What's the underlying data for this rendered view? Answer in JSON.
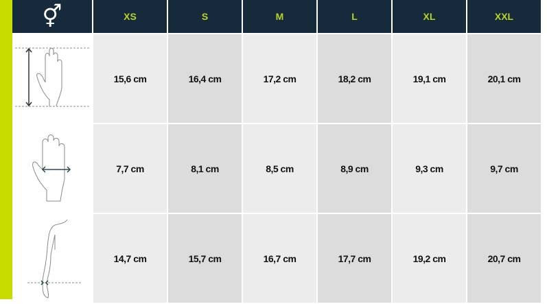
{
  "header": {
    "gender_icon": "⚥",
    "sizes": [
      "XS",
      "S",
      "M",
      "L",
      "XL",
      "XXL"
    ]
  },
  "rows": [
    {
      "icon": "hand-length-icon",
      "values": [
        "15,6 cm",
        "16,4 cm",
        "17,2 cm",
        "18,2 cm",
        "19,1 cm",
        "20,1 cm"
      ]
    },
    {
      "icon": "hand-width-icon",
      "values": [
        "7,7 cm",
        "8,1 cm",
        "8,5 cm",
        "8,9 cm",
        "9,3 cm",
        "9,7 cm"
      ]
    },
    {
      "icon": "wrist-circumference-icon",
      "values": [
        "14,7 cm",
        "15,7 cm",
        "16,7 cm",
        "17,7 cm",
        "19,2 cm",
        "20,7 cm"
      ]
    }
  ],
  "colors": {
    "accent": "#c8dc00",
    "header_bg": "#162a3b",
    "header_text": "#b9d325"
  }
}
